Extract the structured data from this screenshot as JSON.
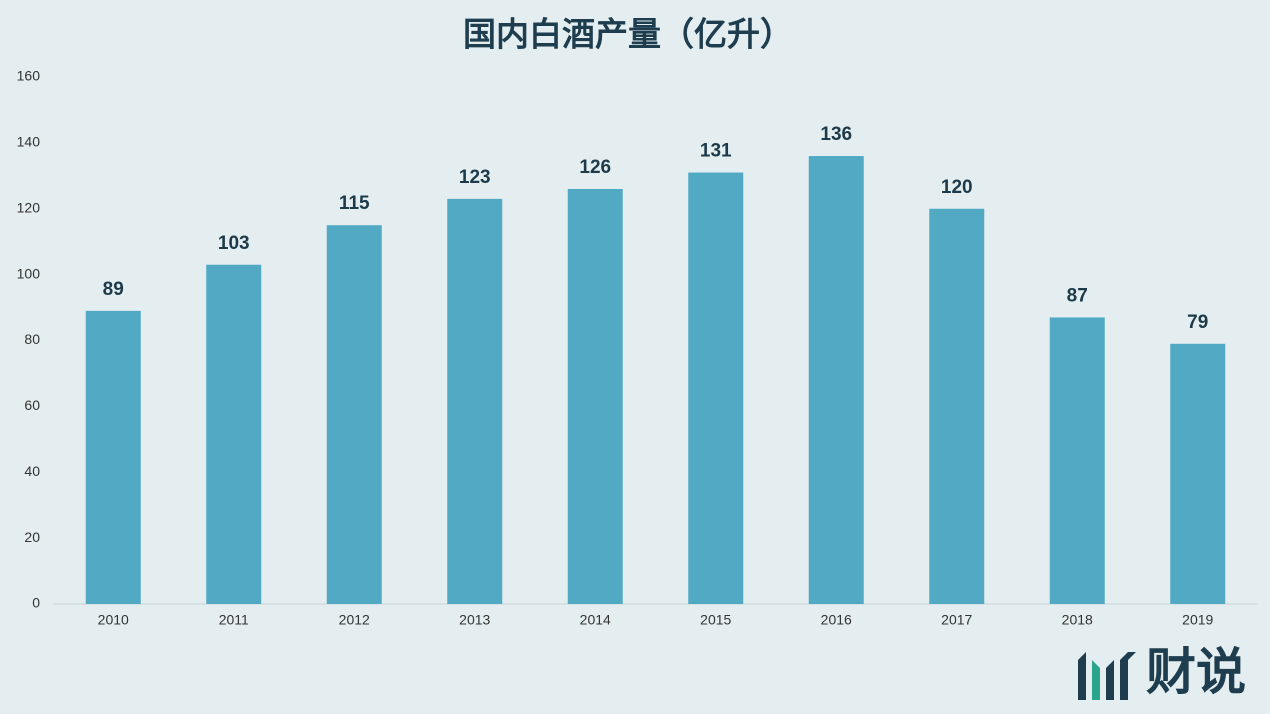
{
  "chart_data": {
    "type": "bar",
    "title": "国内白酒产量（亿升）",
    "categories": [
      "2010",
      "2011",
      "2012",
      "2013",
      "2014",
      "2015",
      "2016",
      "2017",
      "2018",
      "2019"
    ],
    "values": [
      89,
      103,
      115,
      123,
      126,
      131,
      136,
      120,
      87,
      79
    ],
    "color": "#52a9c4",
    "ylim": [
      0,
      160
    ],
    "yticks": [
      0,
      20,
      40,
      60,
      80,
      100,
      120,
      140,
      160
    ],
    "grid": false,
    "brand": "财说"
  }
}
